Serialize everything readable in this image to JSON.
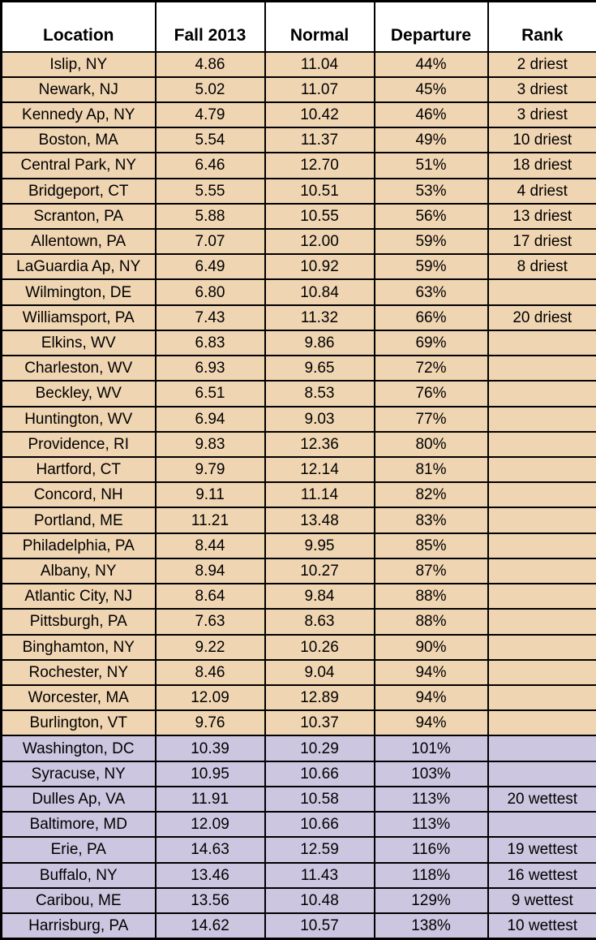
{
  "colors": {
    "dry_row_bg": "#F0D5B2",
    "wet_row_bg": "#CDC6E0",
    "header_bg": "#FFFFFF",
    "border": "#000000"
  },
  "chart_data": {
    "type": "table",
    "columns": [
      "Location",
      "Fall 2013",
      "Normal",
      "Departure",
      "Rank"
    ],
    "rows": [
      {
        "location": "Islip, NY",
        "fall_2013": "4.86",
        "normal": "11.04",
        "departure": "44%",
        "rank": "2 driest",
        "category": "dry"
      },
      {
        "location": "Newark, NJ",
        "fall_2013": "5.02",
        "normal": "11.07",
        "departure": "45%",
        "rank": "3 driest",
        "category": "dry"
      },
      {
        "location": "Kennedy Ap, NY",
        "fall_2013": "4.79",
        "normal": "10.42",
        "departure": "46%",
        "rank": "3 driest",
        "category": "dry"
      },
      {
        "location": "Boston, MA",
        "fall_2013": "5.54",
        "normal": "11.37",
        "departure": "49%",
        "rank": "10 driest",
        "category": "dry"
      },
      {
        "location": "Central Park, NY",
        "fall_2013": "6.46",
        "normal": "12.70",
        "departure": "51%",
        "rank": "18 driest",
        "category": "dry"
      },
      {
        "location": "Bridgeport, CT",
        "fall_2013": "5.55",
        "normal": "10.51",
        "departure": "53%",
        "rank": "4 driest",
        "category": "dry"
      },
      {
        "location": "Scranton, PA",
        "fall_2013": "5.88",
        "normal": "10.55",
        "departure": "56%",
        "rank": "13 driest",
        "category": "dry"
      },
      {
        "location": "Allentown, PA",
        "fall_2013": "7.07",
        "normal": "12.00",
        "departure": "59%",
        "rank": "17 driest",
        "category": "dry"
      },
      {
        "location": "LaGuardia Ap, NY",
        "fall_2013": "6.49",
        "normal": "10.92",
        "departure": "59%",
        "rank": "8 driest",
        "category": "dry"
      },
      {
        "location": "Wilmington, DE",
        "fall_2013": "6.80",
        "normal": "10.84",
        "departure": "63%",
        "rank": "",
        "category": "dry"
      },
      {
        "location": "Williamsport, PA",
        "fall_2013": "7.43",
        "normal": "11.32",
        "departure": "66%",
        "rank": "20 driest",
        "category": "dry"
      },
      {
        "location": "Elkins, WV",
        "fall_2013": "6.83",
        "normal": "9.86",
        "departure": "69%",
        "rank": "",
        "category": "dry"
      },
      {
        "location": "Charleston, WV",
        "fall_2013": "6.93",
        "normal": "9.65",
        "departure": "72%",
        "rank": "",
        "category": "dry"
      },
      {
        "location": "Beckley, WV",
        "fall_2013": "6.51",
        "normal": "8.53",
        "departure": "76%",
        "rank": "",
        "category": "dry"
      },
      {
        "location": "Huntington, WV",
        "fall_2013": "6.94",
        "normal": "9.03",
        "departure": "77%",
        "rank": "",
        "category": "dry"
      },
      {
        "location": "Providence, RI",
        "fall_2013": "9.83",
        "normal": "12.36",
        "departure": "80%",
        "rank": "",
        "category": "dry"
      },
      {
        "location": "Hartford, CT",
        "fall_2013": "9.79",
        "normal": "12.14",
        "departure": "81%",
        "rank": "",
        "category": "dry"
      },
      {
        "location": "Concord, NH",
        "fall_2013": "9.11",
        "normal": "11.14",
        "departure": "82%",
        "rank": "",
        "category": "dry"
      },
      {
        "location": "Portland, ME",
        "fall_2013": "11.21",
        "normal": "13.48",
        "departure": "83%",
        "rank": "",
        "category": "dry"
      },
      {
        "location": "Philadelphia, PA",
        "fall_2013": "8.44",
        "normal": "9.95",
        "departure": "85%",
        "rank": "",
        "category": "dry"
      },
      {
        "location": "Albany, NY",
        "fall_2013": "8.94",
        "normal": "10.27",
        "departure": "87%",
        "rank": "",
        "category": "dry"
      },
      {
        "location": "Atlantic City, NJ",
        "fall_2013": "8.64",
        "normal": "9.84",
        "departure": "88%",
        "rank": "",
        "category": "dry"
      },
      {
        "location": "Pittsburgh, PA",
        "fall_2013": "7.63",
        "normal": "8.63",
        "departure": "88%",
        "rank": "",
        "category": "dry"
      },
      {
        "location": "Binghamton, NY",
        "fall_2013": "9.22",
        "normal": "10.26",
        "departure": "90%",
        "rank": "",
        "category": "dry"
      },
      {
        "location": "Rochester, NY",
        "fall_2013": "8.46",
        "normal": "9.04",
        "departure": "94%",
        "rank": "",
        "category": "dry"
      },
      {
        "location": "Worcester, MA",
        "fall_2013": "12.09",
        "normal": "12.89",
        "departure": "94%",
        "rank": "",
        "category": "dry"
      },
      {
        "location": "Burlington, VT",
        "fall_2013": "9.76",
        "normal": "10.37",
        "departure": "94%",
        "rank": "",
        "category": "dry"
      },
      {
        "location": "Washington, DC",
        "fall_2013": "10.39",
        "normal": "10.29",
        "departure": "101%",
        "rank": "",
        "category": "wet"
      },
      {
        "location": "Syracuse, NY",
        "fall_2013": "10.95",
        "normal": "10.66",
        "departure": "103%",
        "rank": "",
        "category": "wet"
      },
      {
        "location": "Dulles Ap, VA",
        "fall_2013": "11.91",
        "normal": "10.58",
        "departure": "113%",
        "rank": "20 wettest",
        "category": "wet"
      },
      {
        "location": "Baltimore, MD",
        "fall_2013": "12.09",
        "normal": "10.66",
        "departure": "113%",
        "rank": "",
        "category": "wet"
      },
      {
        "location": "Erie, PA",
        "fall_2013": "14.63",
        "normal": "12.59",
        "departure": "116%",
        "rank": "19 wettest",
        "category": "wet"
      },
      {
        "location": "Buffalo, NY",
        "fall_2013": "13.46",
        "normal": "11.43",
        "departure": "118%",
        "rank": "16 wettest",
        "category": "wet"
      },
      {
        "location": "Caribou, ME",
        "fall_2013": "13.56",
        "normal": "10.48",
        "departure": "129%",
        "rank": "9 wettest",
        "category": "wet"
      },
      {
        "location": "Harrisburg, PA",
        "fall_2013": "14.62",
        "normal": "10.57",
        "departure": "138%",
        "rank": "10 wettest",
        "category": "wet"
      }
    ]
  }
}
